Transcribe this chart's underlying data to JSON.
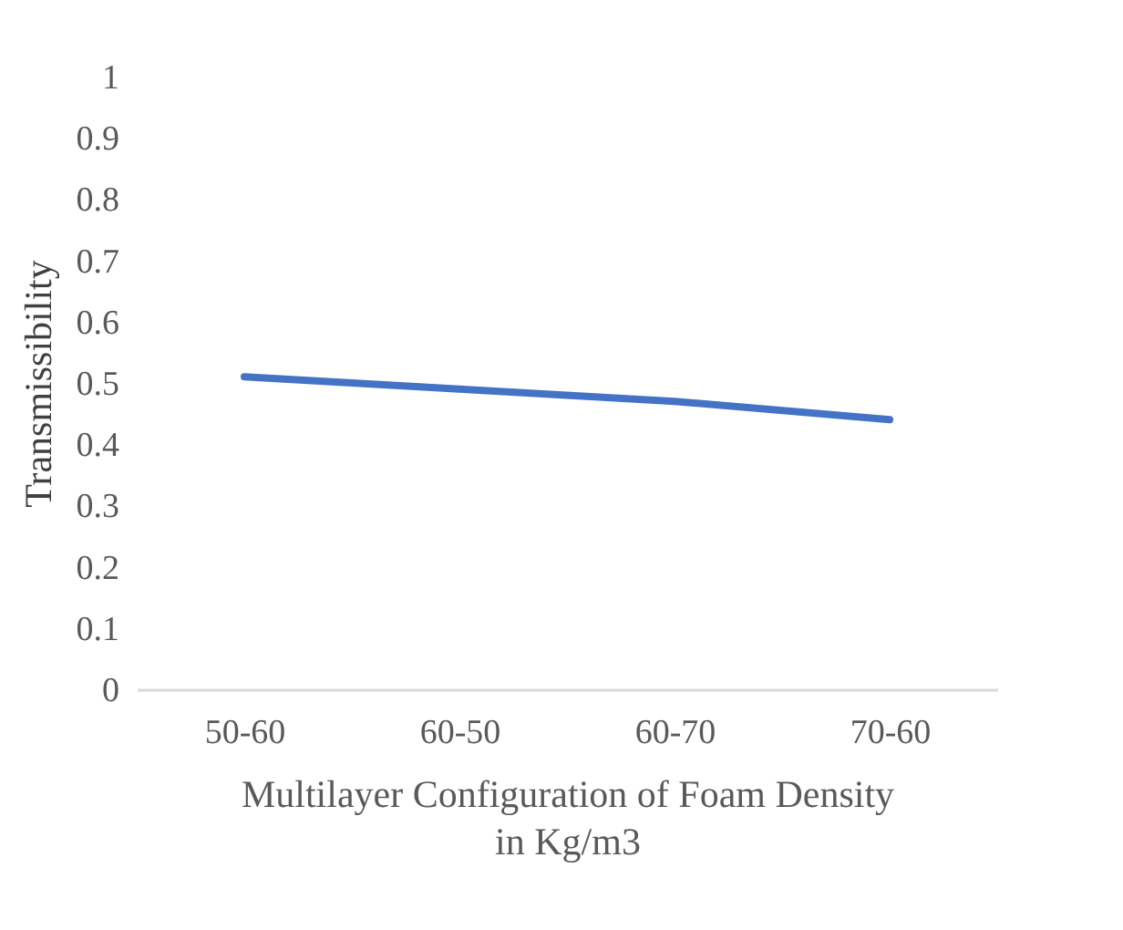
{
  "chart_data": {
    "type": "line",
    "xlabel": "Multilayer Configuration of Foam Density\nin Kg/m3",
    "ylabel": "Transmissibility",
    "categories": [
      "50-60",
      "60-50",
      "60-70",
      "70-60"
    ],
    "series": [
      {
        "color": "#4472c4",
        "values": [
          0.51,
          0.49,
          0.47,
          0.44
        ]
      }
    ],
    "ylim": [
      0,
      1
    ],
    "yticks": [
      0,
      0.1,
      0.2,
      0.3,
      0.4,
      0.5,
      0.6,
      0.7,
      0.8,
      0.9,
      1
    ],
    "grid": false,
    "legend": false,
    "marker": "none",
    "line_style": "solid"
  }
}
